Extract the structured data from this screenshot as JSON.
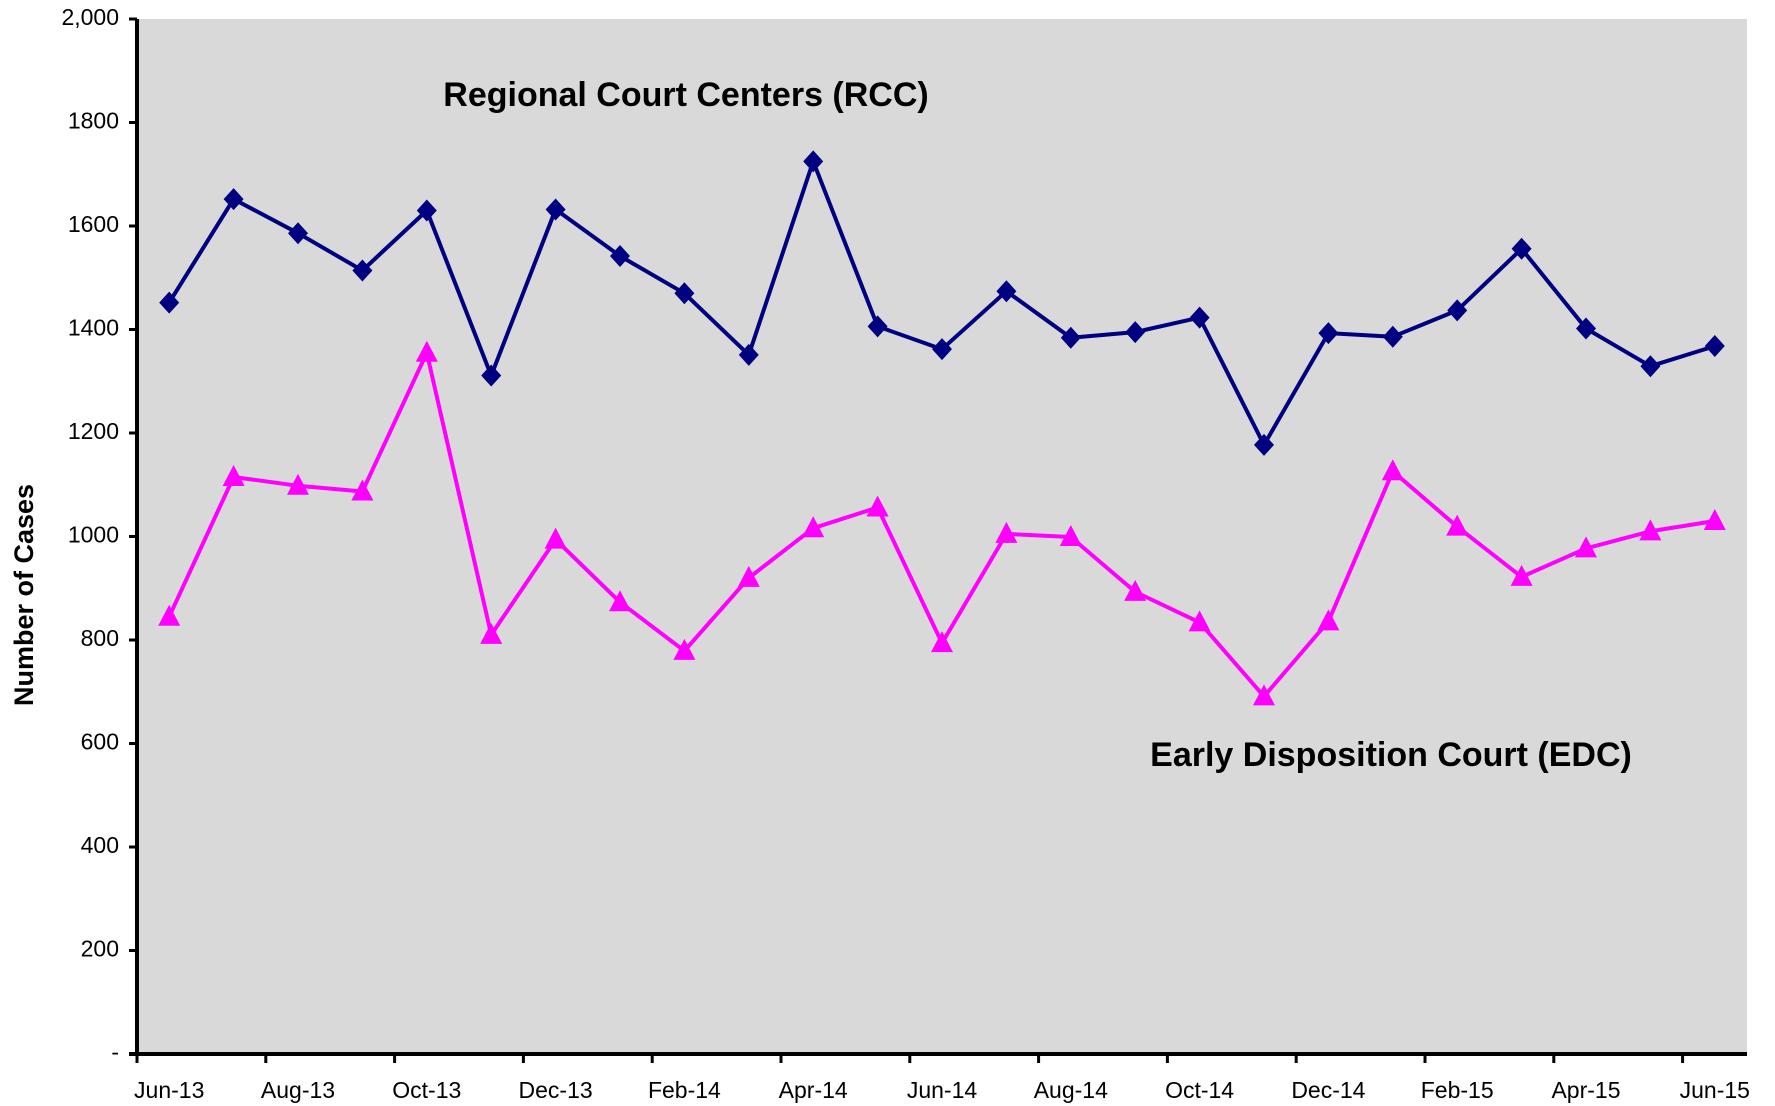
{
  "chart_data": {
    "type": "line",
    "y_label": "Number of Cases",
    "categories": [
      "Jun-13",
      null,
      "Aug-13",
      null,
      "Oct-13",
      null,
      "Dec-13",
      null,
      "Feb-14",
      null,
      "Apr-14",
      null,
      "Jun-14",
      null,
      "Aug-14",
      null,
      "Oct-14",
      null,
      "Dec-14",
      null,
      "Feb-15",
      null,
      "Apr-15",
      null,
      "Jun-15"
    ],
    "series": [
      {
        "name": "Regional Court Centers (RCC)",
        "color": "#000080",
        "marker": "diamond",
        "values": [
          1452,
          1652,
          1586,
          1514,
          1630,
          1311,
          1632,
          1542,
          1470,
          1351,
          1725,
          1406,
          1362,
          1474,
          1384,
          1395,
          1423,
          1177,
          1393,
          1386,
          1437,
          1556,
          1402,
          1329,
          1368
        ]
      },
      {
        "name": "Early Disposition Court (EDC)",
        "color": "#ff00ff",
        "marker": "triangle",
        "values": [
          845,
          1115,
          1098,
          1087,
          1355,
          810,
          994,
          873,
          779,
          920,
          1016,
          1056,
          794,
          1005,
          999,
          893,
          834,
          691,
          836,
          1126,
          1019,
          922,
          977,
          1010,
          1030
        ]
      }
    ],
    "ylim": [
      0,
      2000
    ],
    "yticks": [
      {
        "value": 0,
        "label": "-"
      },
      200,
      400,
      600,
      800,
      1000,
      1200,
      1400,
      1600,
      1800,
      {
        "value": 2000,
        "label": "2,000"
      }
    ],
    "ytick_labels_fix": null,
    "legend": false,
    "grid": false
  }
}
